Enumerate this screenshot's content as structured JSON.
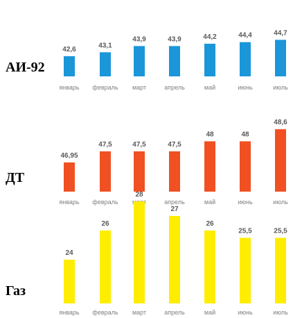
{
  "chart_data": [
    {
      "type": "bar",
      "title": "АИ-92",
      "categories": [
        "январь",
        "февраль",
        "март",
        "апрель",
        "май",
        "июнь",
        "июль"
      ],
      "values": [
        42.6,
        43.1,
        43.9,
        43.9,
        44.2,
        44.4,
        44.7
      ],
      "value_labels": [
        "42,6",
        "43,1",
        "43,9",
        "43,9",
        "44,2",
        "44,4",
        "44,7"
      ],
      "color": "#1a96d9",
      "grid": false,
      "legend": "none"
    },
    {
      "type": "bar",
      "title": "ДТ",
      "categories": [
        "январь",
        "февраль",
        "март",
        "апрель",
        "май",
        "июнь",
        "июль"
      ],
      "values": [
        46.95,
        47.5,
        47.5,
        47.5,
        48,
        48,
        48.6
      ],
      "value_labels": [
        "46,95",
        "47,5",
        "47,5",
        "47,5",
        "48",
        "48",
        "48,6"
      ],
      "color": "#f05022",
      "grid": false,
      "legend": "none"
    },
    {
      "type": "bar",
      "title": "Газ",
      "categories": [
        "январь",
        "февраль",
        "март",
        "апрель",
        "май",
        "июнь",
        "июль"
      ],
      "values": [
        24,
        26,
        28,
        27,
        26,
        25.5,
        25.5
      ],
      "value_labels": [
        "24",
        "26",
        "28",
        "27",
        "26",
        "25,5",
        "25,5"
      ],
      "color": "#ffed00",
      "grid": false,
      "legend": "none"
    }
  ]
}
